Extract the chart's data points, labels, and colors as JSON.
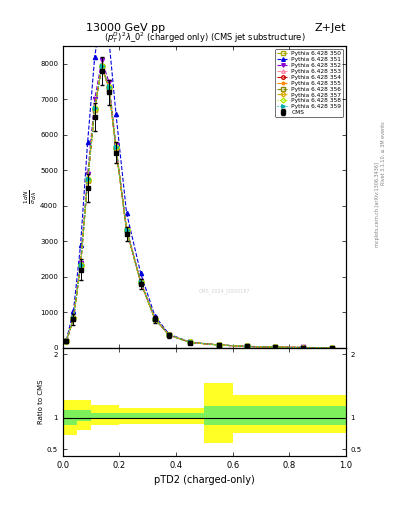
{
  "title_top": "13000 GeV pp",
  "title_right": "Z+Jet",
  "plot_title": "$(p_T^D)^2\\lambda\\_0^2$ (charged only) (CMS jet substructure)",
  "xlabel": "pTD2 (charged-only)",
  "ylabel_main": "$\\frac{1}{\\sigma}\\frac{dN}{d\\lambda}$",
  "ylabel_ratio": "Ratio to CMS",
  "right_label": "mcplots.cern.ch [arXiv:1306.3436]",
  "rivet_label": "Rivet 3.1.10, ≥ 3M events",
  "watermark": "CMS_2024_J1920187",
  "x_bins": [
    0.0,
    0.025,
    0.05,
    0.075,
    0.1,
    0.125,
    0.15,
    0.175,
    0.2,
    0.25,
    0.3,
    0.35,
    0.4,
    0.5,
    0.6,
    0.7,
    0.8,
    0.9,
    1.0
  ],
  "cms_data_y": [
    200,
    800,
    2200,
    4500,
    6500,
    7800,
    7200,
    5500,
    3200,
    1800,
    800,
    350,
    150,
    80,
    40,
    20,
    10,
    5
  ],
  "cms_data_yerr": [
    50,
    150,
    300,
    400,
    400,
    400,
    350,
    300,
    200,
    150,
    100,
    60,
    40,
    20,
    15,
    8,
    5,
    3
  ],
  "series": [
    {
      "label": "Pythia 6.428 350",
      "color": "#aaaa00",
      "linestyle": "--",
      "marker": "s",
      "markerfacecolor": "none",
      "y": [
        180,
        820,
        2300,
        4700,
        6700,
        7900,
        7300,
        5600,
        3300,
        1850,
        820,
        360,
        155,
        82,
        42,
        21,
        11,
        5.5
      ]
    },
    {
      "label": "Pythia 6.428 351",
      "color": "#0000dd",
      "linestyle": "--",
      "marker": "^",
      "markerfacecolor": "#0000dd",
      "y": [
        220,
        1050,
        2900,
        5800,
        8200,
        9500,
        8700,
        6600,
        3800,
        2100,
        900,
        390,
        160,
        85,
        43,
        22,
        11,
        5.5
      ]
    },
    {
      "label": "Pythia 6.428 352",
      "color": "#8800cc",
      "linestyle": "--",
      "marker": "v",
      "markerfacecolor": "#8800cc",
      "y": [
        190,
        850,
        2400,
        4900,
        7000,
        8100,
        7500,
        5700,
        3350,
        1870,
        830,
        365,
        156,
        83,
        42,
        21,
        11,
        5.5
      ]
    },
    {
      "label": "Pythia 6.428 353",
      "color": "#ff88aa",
      "linestyle": "--",
      "marker": "^",
      "markerfacecolor": "none",
      "y": [
        185,
        830,
        2320,
        4720,
        6720,
        7920,
        7320,
        5620,
        3310,
        1840,
        821,
        358,
        152,
        81,
        41,
        20.5,
        10.5,
        5.3
      ]
    },
    {
      "label": "Pythia 6.428 354",
      "color": "#cc0000",
      "linestyle": "--",
      "marker": "o",
      "markerfacecolor": "none",
      "y": [
        183,
        835,
        2330,
        4730,
        6730,
        7930,
        7330,
        5630,
        3320,
        1845,
        822,
        359,
        153,
        81,
        41,
        20.5,
        10.5,
        5.3
      ]
    },
    {
      "label": "Pythia 6.428 355",
      "color": "#ff8800",
      "linestyle": "--",
      "marker": "*",
      "markerfacecolor": "#ff8800",
      "y": [
        185,
        840,
        2350,
        4750,
        6750,
        7950,
        7350,
        5650,
        3330,
        1848,
        824,
        361,
        154,
        82,
        41.5,
        21,
        10.8,
        5.4
      ]
    },
    {
      "label": "Pythia 6.428 356",
      "color": "#888800",
      "linestyle": "--",
      "marker": "s",
      "markerfacecolor": "none",
      "y": [
        182,
        832,
        2340,
        4740,
        6740,
        7940,
        7340,
        5640,
        3325,
        1846,
        823,
        360,
        153,
        82,
        41,
        20.7,
        10.6,
        5.3
      ]
    },
    {
      "label": "Pythia 6.428 357",
      "color": "#ddaa00",
      "linestyle": "-.",
      "marker": "D",
      "markerfacecolor": "none",
      "y": [
        183,
        834,
        2342,
        4742,
        6742,
        7942,
        7342,
        5642,
        3326,
        1847,
        823,
        360,
        153,
        82,
        41,
        20.7,
        10.6,
        5.3
      ]
    },
    {
      "label": "Pythia 6.428 358",
      "color": "#aaee00",
      "linestyle": ":",
      "marker": "D",
      "markerfacecolor": "none",
      "y": [
        184,
        836,
        2344,
        4744,
        6744,
        7944,
        7344,
        5644,
        3327,
        1848,
        824,
        361,
        154,
        82,
        41.2,
        20.8,
        10.7,
        5.4
      ]
    },
    {
      "label": "Pythia 6.428 359",
      "color": "#00aaaa",
      "linestyle": ":",
      "marker": ">",
      "markerfacecolor": "#00aaaa",
      "y": [
        186,
        838,
        2346,
        4746,
        6746,
        7946,
        7346,
        5646,
        3328,
        1849,
        825,
        362,
        154,
        82,
        41.3,
        20.9,
        10.7,
        5.4
      ]
    }
  ],
  "ratio_x_edges": [
    0.0,
    0.05,
    0.1,
    0.2,
    0.3,
    0.5,
    0.6,
    1.0
  ],
  "ratio_green_lo": [
    0.88,
    0.95,
    0.98,
    1.0,
    1.0,
    0.88,
    0.88
  ],
  "ratio_green_hi": [
    1.12,
    1.12,
    1.08,
    1.07,
    1.07,
    1.18,
    1.18
  ],
  "ratio_yellow_lo": [
    0.72,
    0.8,
    0.88,
    0.9,
    0.9,
    0.6,
    0.75
  ],
  "ratio_yellow_hi": [
    1.28,
    1.28,
    1.2,
    1.15,
    1.15,
    1.55,
    1.35
  ],
  "ylim_main": [
    0,
    8500
  ],
  "ylim_ratio": [
    0.4,
    2.1
  ],
  "bg_color": "#ffffff"
}
